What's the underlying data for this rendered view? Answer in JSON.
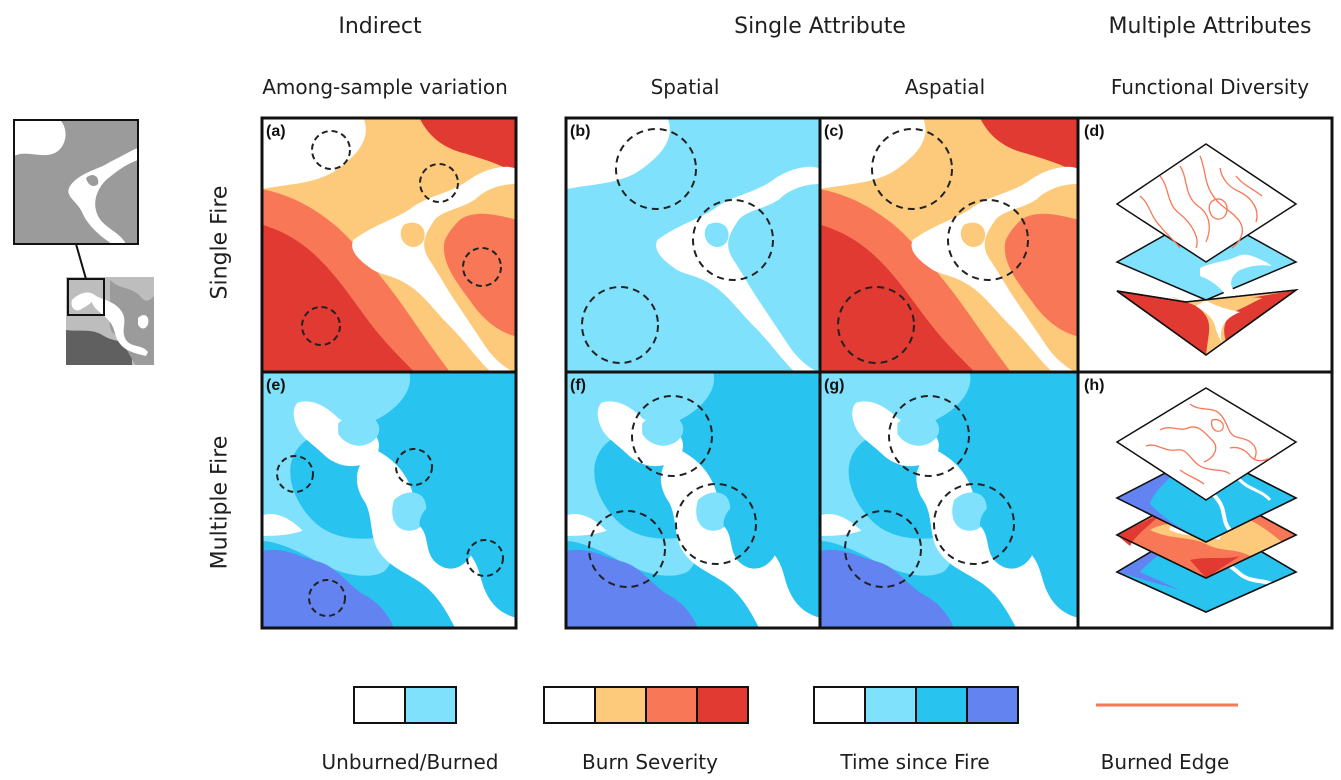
{
  "headers": {
    "indirect": "Indirect",
    "single_attribute": "Single Attribute",
    "multiple_attributes": "Multiple Attributes"
  },
  "subheaders": {
    "among_sample": "Among-sample variation",
    "spatial": "Spatial",
    "aspatial": "Aspatial",
    "functional_diversity": "Functional Diversity"
  },
  "row_labels": {
    "single_fire": "Single Fire",
    "multiple_fire": "Multiple Fire"
  },
  "panels": {
    "a": "(a)",
    "b": "(b)",
    "c": "(c)",
    "d": "(d)",
    "e": "(e)",
    "f": "(f)",
    "g": "(g)",
    "h": "(h)"
  },
  "legend": {
    "unburned_burned": "Unburned/Burned",
    "burn_severity": "Burn Severity",
    "time_since_fire": "Time since Fire",
    "burned_edge": "Burned Edge"
  },
  "colors": {
    "unburned": "#ffffff",
    "burned": "#7fe1fb",
    "severity_low": "#fdc97a",
    "severity_mid": "#f87756",
    "severity_high": "#e03a33",
    "time_1": "#7fe1fb",
    "time_2": "#29c3f0",
    "time_3": "#6383f1",
    "edge": "#f87756",
    "inset_light": "#bdbdbd",
    "inset_mid": "#9b9b9b",
    "inset_dark": "#606060"
  }
}
